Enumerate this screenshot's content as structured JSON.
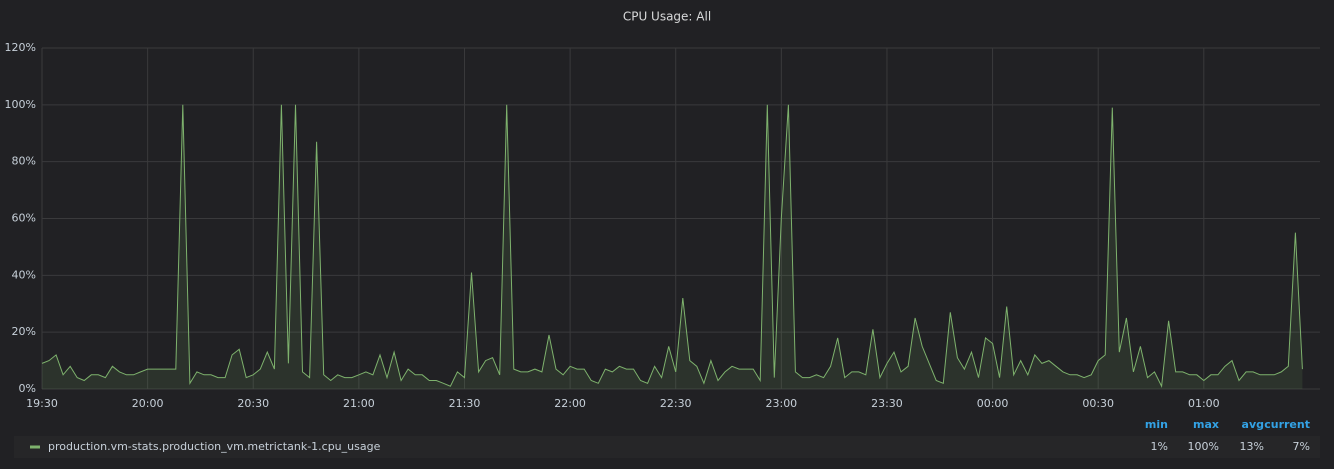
{
  "chart_data": {
    "type": "line",
    "title": "CPU Usage: All",
    "xlim": [
      "19:30",
      "01:33"
    ],
    "xticks": [
      "19:30",
      "20:00",
      "20:30",
      "21:00",
      "21:30",
      "22:00",
      "22:30",
      "23:00",
      "23:30",
      "00:00",
      "00:30",
      "01:00"
    ],
    "ylim": [
      0,
      120
    ],
    "yticks": [
      {
        "value": 0,
        "label": "0%"
      },
      {
        "value": 20,
        "label": "20%"
      },
      {
        "value": 40,
        "label": "40%"
      },
      {
        "value": 60,
        "label": "60%"
      },
      {
        "value": 80,
        "label": "80%"
      },
      {
        "value": 100,
        "label": "100%"
      },
      {
        "value": 120,
        "label": "120%"
      }
    ],
    "grid": true,
    "x": [
      "19:30",
      "19:32",
      "19:34",
      "19:36",
      "19:38",
      "19:40",
      "19:42",
      "19:44",
      "19:46",
      "19:48",
      "19:50",
      "19:52",
      "19:54",
      "19:56",
      "19:58",
      "20:00",
      "20:02",
      "20:04",
      "20:06",
      "20:08",
      "20:10",
      "20:12",
      "20:14",
      "20:16",
      "20:18",
      "20:20",
      "20:22",
      "20:24",
      "20:26",
      "20:28",
      "20:30",
      "20:32",
      "20:34",
      "20:36",
      "20:38",
      "20:40",
      "20:42",
      "20:44",
      "20:46",
      "20:48",
      "20:50",
      "20:52",
      "20:54",
      "20:56",
      "20:58",
      "21:00",
      "21:02",
      "21:04",
      "21:06",
      "21:08",
      "21:10",
      "21:12",
      "21:14",
      "21:16",
      "21:18",
      "21:20",
      "21:22",
      "21:24",
      "21:26",
      "21:28",
      "21:30",
      "21:32",
      "21:34",
      "21:36",
      "21:38",
      "21:40",
      "21:42",
      "21:44",
      "21:46",
      "21:48",
      "21:50",
      "21:52",
      "21:54",
      "21:56",
      "21:58",
      "22:00",
      "22:02",
      "22:04",
      "22:06",
      "22:08",
      "22:10",
      "22:12",
      "22:14",
      "22:16",
      "22:18",
      "22:20",
      "22:22",
      "22:24",
      "22:26",
      "22:28",
      "22:30",
      "22:32",
      "22:34",
      "22:36",
      "22:38",
      "22:40",
      "22:42",
      "22:44",
      "22:46",
      "22:48",
      "22:50",
      "22:52",
      "22:54",
      "22:56",
      "22:58",
      "23:00",
      "23:02",
      "23:04",
      "23:06",
      "23:08",
      "23:10",
      "23:12",
      "23:14",
      "23:16",
      "23:18",
      "23:20",
      "23:22",
      "23:24",
      "23:26",
      "23:28",
      "23:30",
      "23:32",
      "23:34",
      "23:36",
      "23:38",
      "23:40",
      "23:42",
      "23:44",
      "23:46",
      "23:48",
      "23:50",
      "23:52",
      "23:54",
      "23:56",
      "23:58",
      "00:00",
      "00:02",
      "00:04",
      "00:06",
      "00:08",
      "00:10",
      "00:12",
      "00:14",
      "00:16",
      "00:18",
      "00:20",
      "00:22",
      "00:24",
      "00:26",
      "00:28",
      "00:30",
      "00:32",
      "00:34",
      "00:36",
      "00:38",
      "00:40",
      "00:42",
      "00:44",
      "00:46",
      "00:48",
      "00:50",
      "00:52",
      "00:54",
      "00:56",
      "00:58",
      "01:00",
      "01:02",
      "01:04",
      "01:06",
      "01:08",
      "01:10",
      "01:12",
      "01:14",
      "01:16",
      "01:18",
      "01:20",
      "01:22",
      "01:24",
      "01:26",
      "01:28"
    ],
    "series": [
      {
        "name": "production.vm-stats.production_vm.metrictank-1.cpu_usage",
        "color": "#7eb26d",
        "values": [
          9,
          10,
          12,
          5,
          8,
          4,
          3,
          5,
          5,
          4,
          8,
          6,
          5,
          5,
          6,
          7,
          7,
          7,
          7,
          7,
          100,
          2,
          6,
          5,
          5,
          4,
          4,
          12,
          14,
          4,
          5,
          7,
          13,
          7,
          100,
          9,
          100,
          6,
          4,
          87,
          5,
          3,
          5,
          4,
          4,
          5,
          6,
          5,
          12,
          4,
          13,
          3,
          7,
          5,
          5,
          3,
          3,
          2,
          1,
          6,
          4,
          41,
          6,
          10,
          11,
          5,
          100,
          7,
          6,
          6,
          7,
          6,
          19,
          7,
          5,
          8,
          7,
          7,
          3,
          2,
          7,
          6,
          8,
          7,
          7,
          3,
          2,
          8,
          4,
          15,
          6,
          32,
          10,
          8,
          2,
          10,
          3,
          6,
          8,
          7,
          7,
          7,
          3,
          100,
          4,
          60,
          100,
          6,
          4,
          4,
          5,
          4,
          8,
          18,
          4,
          6,
          6,
          5,
          21,
          4,
          9,
          13,
          6,
          8,
          25,
          15,
          9,
          3,
          2,
          27,
          11,
          7,
          13,
          4,
          18,
          16,
          4,
          29,
          5,
          10,
          5,
          12,
          9,
          10,
          8,
          6,
          5,
          5,
          4,
          5,
          10,
          12,
          99,
          13,
          25,
          6,
          15,
          4,
          6,
          1,
          24,
          6,
          6,
          5,
          5,
          3,
          5,
          5,
          8,
          10,
          3,
          6,
          6,
          5,
          5,
          5,
          6,
          8,
          55,
          7
        ],
        "stats": [
          {
            "name": "min",
            "value": "1%"
          },
          {
            "name": "max",
            "value": "100%"
          },
          {
            "name": "avg",
            "value": "13%"
          },
          {
            "name": "current",
            "value": "7%"
          }
        ]
      }
    ]
  }
}
